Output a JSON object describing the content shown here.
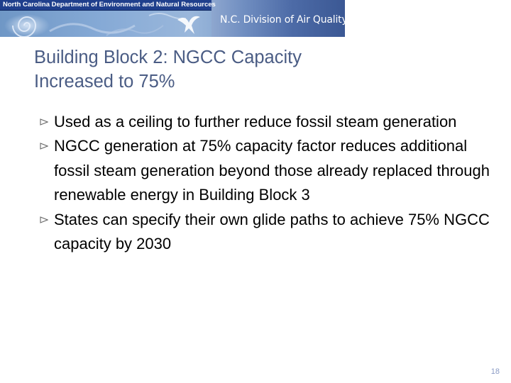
{
  "header": {
    "agency_label": "North Carolina Department of Environment and Natural Resources",
    "division_label": "N.C. Division of Air Quality",
    "logo_icon": "bird-silhouette-icon",
    "swirl_icon": "swirl-ornament-icon"
  },
  "slide": {
    "title_line1": "Building Block 2:  NGCC Capacity",
    "title_line2": "Increased to 75%",
    "bullet_icon": "hollow-triangle-bullet-icon",
    "bullets": [
      "Used as a ceiling to further reduce fossil steam generation",
      "NGCC generation at 75% capacity factor reduces additional fossil steam generation beyond those already replaced through renewable energy in Building Block 3",
      "States can specify their own glide paths to achieve 75% NGCC capacity by 2030"
    ],
    "slide_number": "18"
  },
  "colors": {
    "title": "#4a5c84",
    "banner_dark": "#1f3f8c",
    "body_text": "#000000",
    "slide_number": "#8a9bc5"
  }
}
